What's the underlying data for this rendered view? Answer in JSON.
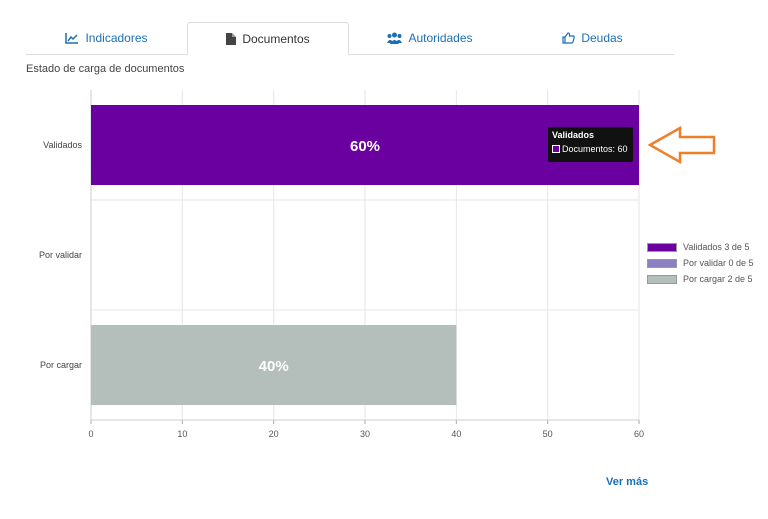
{
  "tabs": [
    {
      "label": "Indicadores",
      "icon": "line-chart-icon",
      "active": false
    },
    {
      "label": "Documentos",
      "icon": "document-icon",
      "active": true
    },
    {
      "label": "Autoridades",
      "icon": "users-icon",
      "active": false
    },
    {
      "label": "Deudas",
      "icon": "thumbs-up-icon",
      "active": false
    }
  ],
  "subtitle": "Estado de carga de documentos",
  "colors": {
    "link": "#1b6fb5",
    "validados": "#6a00a0",
    "por_validar": "#8c80c0",
    "por_cargar": "#b4beba",
    "arrow": "#f07f2a"
  },
  "chart_data": {
    "type": "bar",
    "orientation": "horizontal",
    "categories": [
      "Validados",
      "Por validar",
      "Por cargar"
    ],
    "values": [
      60,
      0,
      40
    ],
    "value_labels": [
      "60%",
      "",
      "40%"
    ],
    "xlim": [
      0,
      60
    ],
    "xticks": [
      "0",
      "10",
      "20",
      "30",
      "40",
      "50",
      "60"
    ],
    "grid": true,
    "legend": [
      {
        "label": "Validados 3 de 5",
        "color": "#6a00a0"
      },
      {
        "label": "Por validar 0 de 5",
        "color": "#8c80c0"
      },
      {
        "label": "Por cargar 2 de 5",
        "color": "#b4beba"
      }
    ],
    "legend_position": "right"
  },
  "tooltip": {
    "title": "Validados",
    "row": "Documentos: 60"
  },
  "ver_mas": "Ver más"
}
